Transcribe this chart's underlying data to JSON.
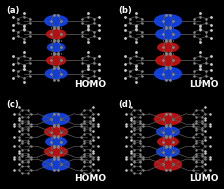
{
  "figsize": [
    2.24,
    1.89
  ],
  "dpi": 100,
  "background_color": "#000000",
  "label_color": "#ffffff",
  "orbital_label_color": "#ffffff",
  "blue_color": "#1144ee",
  "red_color": "#cc1111",
  "bond_color": "#555555",
  "atom_color": "#888888",
  "white_H": "#cccccc",
  "font_size_label": 6.0,
  "font_size_orbital": 6.5,
  "panels": [
    {
      "label": "(a)",
      "orbital_label": "HOMO"
    },
    {
      "label": "(b)",
      "orbital_label": "LUMO"
    },
    {
      "label": "(c)",
      "orbital_label": "HOMO"
    },
    {
      "label": "(d)",
      "orbital_label": "LUMO"
    }
  ]
}
